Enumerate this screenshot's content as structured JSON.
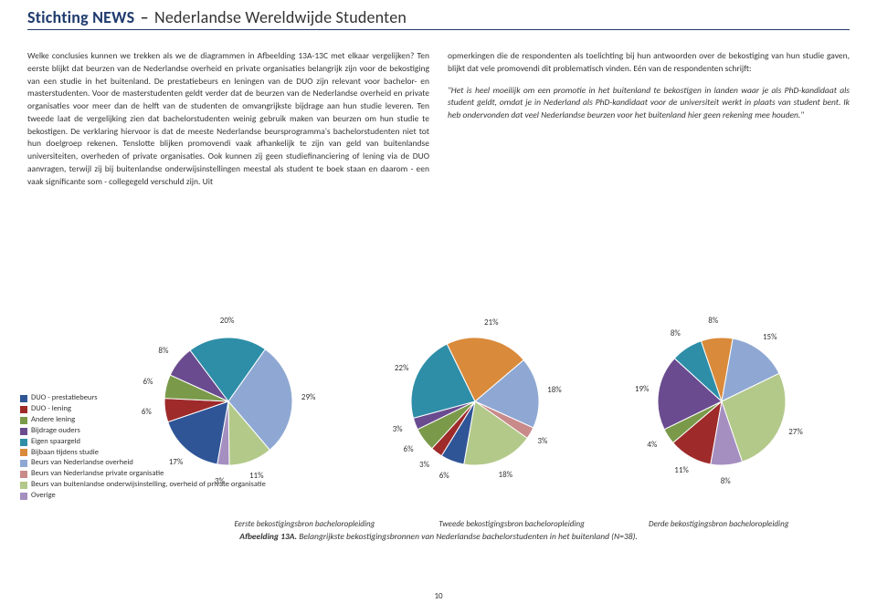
{
  "header": {
    "org": "Stichting NEWS",
    "sep": "–",
    "sub": "Nederlandse Wereldwijde Studenten"
  },
  "text": {
    "left": "Welke conclusies kunnen we trekken als we de diagrammen in Afbeelding 13A-13C met elkaar vergelijken? Ten eerste blijkt dat beurzen van de Nederlandse overheid en private organisaties belangrijk zijn voor de bekostiging van een studie in het buitenland. De prestatiebeurs en leningen van de DUO zijn relevant voor bachelor- en masterstudenten. Voor de masterstudenten geldt verder dat de beurzen van de Nederlandse overheid en private organisaties voor meer dan de helft van de studenten de omvangrijkste bijdrage aan hun studie leveren. Ten tweede laat de vergelijking zien dat bachelorstudenten weinig gebruik maken van beurzen om hun studie te bekostigen. De verklaring hiervoor is dat de meeste Nederlandse beursprogramma's bachelorstudenten niet tot hun doelgroep rekenen. Tenslotte blijken promovendi vaak afhankelijk te zijn van geld van buitenlandse universiteiten, overheden of private organisaties. Ook kunnen zij geen studiefinanciering of lening via de DUO aanvragen, terwijl zij bij buitenlandse onderwijsinstellingen meestal als student te boek staan en daarom - een vaak significante som - collegegeld verschuld zijn. Uit",
    "right_p1": "opmerkingen die de respondenten als toelichting bij hun antwoorden over de bekostiging van hun studie gaven, blijkt dat vele promovendi dit problematisch vinden. Eén van de respondenten schrijft:",
    "right_quote": "\"Het is heel moeilijk om een promotie in het buitenland te bekostigen in landen waar je als PhD-kandidaat als student geldt, omdat je in Nederland als PhD-kandidaat voor de universiteit werkt in plaats van student bent. Ik heb ondervonden dat veel Nederlandse beurzen voor het buitenland hier geen rekening mee houden.\""
  },
  "legend": {
    "items": [
      {
        "label": "DUO - prestatiebeurs",
        "color": "#2f5597"
      },
      {
        "label": "DUO - lening",
        "color": "#9e2a2a"
      },
      {
        "label": "Andere lening",
        "color": "#7a9a4a"
      },
      {
        "label": "Bijdrage ouders",
        "color": "#6a4b8f"
      },
      {
        "label": "Eigen spaargeld",
        "color": "#2e8ea8"
      },
      {
        "label": "Bijbaan tijdens studie",
        "color": "#d98a3a"
      },
      {
        "label": "Beurs van Nederlandse overheid",
        "color": "#8fa8d3"
      },
      {
        "label": "Beurs van Nederlandse private organisatie",
        "color": "#c98a8a"
      },
      {
        "label": "Beurs van buitenlandse onderwijsinstelling, overheid of private organisatie",
        "color": "#b3c98a"
      },
      {
        "label": "Overige",
        "color": "#a58fc0"
      }
    ]
  },
  "charts": [
    {
      "subtitle": "Eerste bekostigingsbron bacheloropleiding",
      "radius": 70,
      "slices": [
        {
          "value": 17,
          "label": "17%",
          "color": "#2f5597"
        },
        {
          "value": 6,
          "label": "6%",
          "color": "#9e2a2a"
        },
        {
          "value": 6,
          "label": "6%",
          "color": "#7a9a4a"
        },
        {
          "value": 8,
          "label": "8%",
          "color": "#6a4b8f"
        },
        {
          "value": 20,
          "label": "20%",
          "color": "#2e8ea8"
        },
        {
          "value": 29,
          "label": "29%",
          "color": "#8fa8d3"
        },
        {
          "value": 11,
          "label": "11%",
          "color": "#b3c98a"
        },
        {
          "value": 3,
          "label": "3%",
          "color": "#a58fc0"
        }
      ]
    },
    {
      "subtitle": "Tweede bekostigingsbron bacheloropleiding",
      "radius": 70,
      "slices": [
        {
          "value": 6,
          "label": "6%",
          "color": "#2f5597"
        },
        {
          "value": 3,
          "label": "3%",
          "color": "#9e2a2a"
        },
        {
          "value": 6,
          "label": "6%",
          "color": "#7a9a4a"
        },
        {
          "value": 3,
          "label": "3%",
          "color": "#6a4b8f"
        },
        {
          "value": 22,
          "label": "22%",
          "color": "#2e8ea8"
        },
        {
          "value": 21,
          "label": "21%",
          "color": "#d98a3a"
        },
        {
          "value": 18,
          "label": "18%",
          "color": "#8fa8d3"
        },
        {
          "value": 3,
          "label": "3%",
          "color": "#c98a8a"
        },
        {
          "value": 18,
          "label": "18%",
          "color": "#b3c98a"
        }
      ]
    },
    {
      "subtitle": "Derde bekostigingsbron bacheloropleiding",
      "radius": 70,
      "slices": [
        {
          "value": 11,
          "label": "11%",
          "color": "#9e2a2a"
        },
        {
          "value": 4,
          "label": "4%",
          "color": "#7a9a4a"
        },
        {
          "value": 19,
          "label": "19%",
          "color": "#6a4b8f"
        },
        {
          "value": 8,
          "label": "8%",
          "color": "#2e8ea8"
        },
        {
          "value": 8,
          "label": "8%",
          "color": "#d98a3a"
        },
        {
          "value": 15,
          "label": "15%",
          "color": "#8fa8d3"
        },
        {
          "value": 27,
          "label": "27%",
          "color": "#b3c98a"
        },
        {
          "value": 8,
          "label": "8%",
          "color": "#a58fc0"
        }
      ]
    }
  ],
  "caption": {
    "bold": "Afbeelding 13A.",
    "rest": " Belangrijkste bekostigingsbronnen van Nederlandse bachelorstudenten in het buitenland (N=38)."
  },
  "page_number": "10",
  "style": {
    "pie_bg": "#ffffff",
    "label_offset": 18,
    "start_angle": -170
  }
}
